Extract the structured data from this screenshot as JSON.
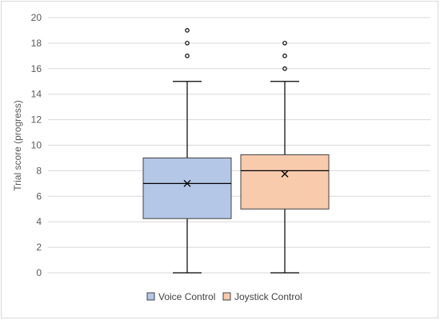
{
  "chart_data": {
    "type": "box",
    "title": "",
    "xlabel": "",
    "ylabel": "Trial score (progress)",
    "ylim": [
      0,
      20
    ],
    "yticks": [
      "0",
      "2",
      "4",
      "6",
      "8",
      "10",
      "12",
      "14",
      "16",
      "18",
      "20"
    ],
    "grid": true,
    "legend_position": "bottom",
    "series": [
      {
        "name": "Voice Control",
        "color": "#b4c7e7",
        "min": 0,
        "q1": 4.25,
        "median": 7,
        "mean": 7,
        "q3": 9,
        "max": 15,
        "outliers": [
          17,
          18,
          19
        ]
      },
      {
        "name": "Joystick Control",
        "color": "#f8cbad",
        "min": 0,
        "q1": 5,
        "median": 8,
        "mean": 7.75,
        "q3": 9.25,
        "max": 15,
        "outliers": [
          16,
          17,
          18
        ]
      }
    ]
  }
}
